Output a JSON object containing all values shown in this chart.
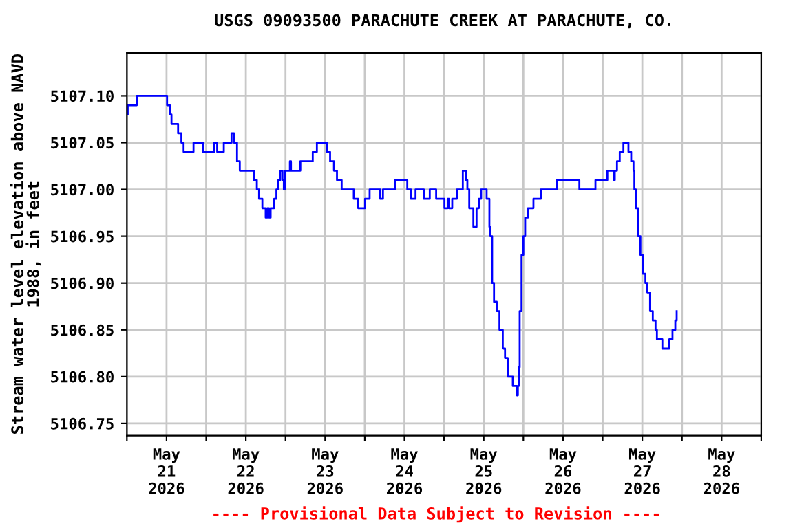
{
  "chart_data": {
    "type": "step",
    "title": "USGS 09093500 PARACHUTE CREEK AT PARACHUTE, CO.",
    "ylabel": "Stream water level elevation above NAVD\n1988, in feet",
    "annotations": [
      "---- Provisional Data Subject to Revision ----"
    ],
    "xlim": [
      "2026-05-21T00:00",
      "2026-05-29T00:00"
    ],
    "xticks": [
      {
        "value": "2026-05-21T00:00",
        "label": null
      },
      {
        "value": "2026-05-21T12:00",
        "label": "May\n21\n2026"
      },
      {
        "value": "2026-05-22T00:00",
        "label": null
      },
      {
        "value": "2026-05-22T12:00",
        "label": "May\n22\n2026"
      },
      {
        "value": "2026-05-23T00:00",
        "label": null
      },
      {
        "value": "2026-05-23T12:00",
        "label": "May\n23\n2026"
      },
      {
        "value": "2026-05-24T00:00",
        "label": null
      },
      {
        "value": "2026-05-24T12:00",
        "label": "May\n24\n2026"
      },
      {
        "value": "2026-05-25T00:00",
        "label": null
      },
      {
        "value": "2026-05-25T12:00",
        "label": "May\n25\n2026"
      },
      {
        "value": "2026-05-26T00:00",
        "label": null
      },
      {
        "value": "2026-05-26T12:00",
        "label": "May\n26\n2026"
      },
      {
        "value": "2026-05-27T00:00",
        "label": null
      },
      {
        "value": "2026-05-27T12:00",
        "label": "May\n27\n2026"
      },
      {
        "value": "2026-05-28T00:00",
        "label": null
      },
      {
        "value": "2026-05-28T12:00",
        "label": "May\n28\n2026"
      },
      {
        "value": "2026-05-29T00:00",
        "label": null
      }
    ],
    "ylim": [
      5106.737,
      5107.146
    ],
    "yticks": [
      {
        "value": 5106.75,
        "label": "5106.75"
      },
      {
        "value": 5106.8,
        "label": "5106.80"
      },
      {
        "value": 5106.85,
        "label": "5106.85"
      },
      {
        "value": 5106.9,
        "label": "5106.90"
      },
      {
        "value": 5106.95,
        "label": "5106.95"
      },
      {
        "value": 5107.0,
        "label": "5107.00"
      },
      {
        "value": 5107.05,
        "label": "5107.05"
      },
      {
        "value": 5107.1,
        "label": "5107.10"
      }
    ],
    "grid": true,
    "series": [
      {
        "color": "#0000ff",
        "x": [
          "2026-05-21T00:00",
          "2026-05-21T00:15",
          "2026-05-21T03:00",
          "2026-05-21T12:10",
          "2026-05-21T13:00",
          "2026-05-21T13:30",
          "2026-05-21T15:30",
          "2026-05-21T16:30",
          "2026-05-21T17:10",
          "2026-05-21T20:10",
          "2026-05-21T23:00",
          "2026-05-22T02:25",
          "2026-05-22T03:20",
          "2026-05-22T05:20",
          "2026-05-22T07:40",
          "2026-05-22T08:25",
          "2026-05-22T09:20",
          "2026-05-22T10:10",
          "2026-05-22T14:30",
          "2026-05-22T15:20",
          "2026-05-22T16:00",
          "2026-05-22T17:00",
          "2026-05-22T18:00",
          "2026-05-22T18:30",
          "2026-05-22T19:00",
          "2026-05-22T19:30",
          "2026-05-22T20:35",
          "2026-05-22T21:15",
          "2026-05-22T21:50",
          "2026-05-22T22:25",
          "2026-05-22T23:05",
          "2026-05-22T23:30",
          "2026-05-22T23:55",
          "2026-05-23T01:20",
          "2026-05-23T01:40",
          "2026-05-23T04:30",
          "2026-05-23T08:15",
          "2026-05-23T09:30",
          "2026-05-23T12:30",
          "2026-05-23T13:30",
          "2026-05-23T14:40",
          "2026-05-23T15:35",
          "2026-05-23T17:00",
          "2026-05-23T20:40",
          "2026-05-23T22:00",
          "2026-05-24T00:05",
          "2026-05-24T01:28",
          "2026-05-24T04:40",
          "2026-05-24T05:30",
          "2026-05-24T09:07",
          "2026-05-24T12:52",
          "2026-05-24T13:58",
          "2026-05-24T15:22",
          "2026-05-24T17:52",
          "2026-05-24T19:40",
          "2026-05-24T21:36",
          "2026-05-25T00:07",
          "2026-05-25T01:05",
          "2026-05-25T01:30",
          "2026-05-25T02:28",
          "2026-05-25T03:52",
          "2026-05-25T05:40",
          "2026-05-25T06:38",
          "2026-05-25T07:03",
          "2026-05-25T07:37",
          "2026-05-25T08:52",
          "2026-05-25T09:50",
          "2026-05-25T10:32",
          "2026-05-25T11:13",
          "2026-05-25T12:53",
          "2026-05-25T13:43",
          "2026-05-25T14:00",
          "2026-05-25T14:33",
          "2026-05-25T15:07",
          "2026-05-25T15:56",
          "2026-05-25T16:46",
          "2026-05-25T17:46",
          "2026-05-25T18:27",
          "2026-05-25T19:16",
          "2026-05-25T20:06",
          "2026-05-25T20:48",
          "2026-05-25T22:03",
          "2026-05-25T22:20",
          "2026-05-25T22:37",
          "2026-05-25T22:53",
          "2026-05-25T23:27",
          "2026-05-26T00:00",
          "2026-05-26T00:33",
          "2026-05-26T01:23",
          "2026-05-26T03:03",
          "2026-05-26T05:17",
          "2026-05-26T10:08",
          "2026-05-26T16:57",
          "2026-05-26T21:49",
          "2026-05-27T01:25",
          "2026-05-27T03:22",
          "2026-05-27T03:40",
          "2026-05-27T04:20",
          "2026-05-27T05:10",
          "2026-05-27T06:17",
          "2026-05-27T07:48",
          "2026-05-27T08:38",
          "2026-05-27T09:20",
          "2026-05-27T09:36",
          "2026-05-27T10:02",
          "2026-05-27T10:44",
          "2026-05-27T11:25",
          "2026-05-27T12:07",
          "2026-05-27T12:56",
          "2026-05-27T13:30",
          "2026-05-27T14:20",
          "2026-05-27T15:10",
          "2026-05-27T16:00",
          "2026-05-27T16:25",
          "2026-05-27T18:04",
          "2026-05-27T20:10",
          "2026-05-27T21:08",
          "2026-05-27T21:59",
          "2026-05-27T22:24"
        ],
        "values": [
          5107.08,
          5107.09,
          5107.1,
          5107.09,
          5107.08,
          5107.07,
          5107.06,
          5107.05,
          5107.04,
          5107.05,
          5107.04,
          5107.05,
          5107.04,
          5107.05,
          5107.06,
          5107.05,
          5107.03,
          5107.02,
          5107.01,
          5107.0,
          5106.99,
          5106.98,
          5106.97,
          5106.98,
          5106.97,
          5106.98,
          5106.99,
          5107.0,
          5107.01,
          5107.02,
          5107.01,
          5107.0,
          5107.02,
          5107.03,
          5107.02,
          5107.03,
          5107.04,
          5107.05,
          5107.04,
          5107.03,
          5107.02,
          5107.01,
          5107.0,
          5106.99,
          5106.98,
          5106.99,
          5107.0,
          5106.99,
          5107.0,
          5107.01,
          5107.0,
          5106.99,
          5107.0,
          5106.99,
          5107.0,
          5106.99,
          5106.98,
          5106.99,
          5106.98,
          5106.99,
          5107.0,
          5107.02,
          5107.01,
          5107.0,
          5106.98,
          5106.96,
          5106.98,
          5106.99,
          5107.0,
          5106.99,
          5106.96,
          5106.95,
          5106.9,
          5106.88,
          5106.87,
          5106.85,
          5106.83,
          5106.82,
          5106.8,
          5106.8,
          5106.79,
          5106.78,
          5106.79,
          5106.81,
          5106.87,
          5106.93,
          5106.95,
          5106.97,
          5106.98,
          5106.99,
          5107.0,
          5107.01,
          5107.0,
          5107.01,
          5107.02,
          5107.01,
          5107.02,
          5107.03,
          5107.04,
          5107.05,
          5107.04,
          5107.03,
          5107.02,
          5107.0,
          5106.98,
          5106.95,
          5106.93,
          5106.91,
          5106.9,
          5106.89,
          5106.87,
          5106.86,
          5106.85,
          5106.84,
          5106.83,
          5106.84,
          5106.85,
          5106.86,
          5106.87
        ]
      }
    ]
  }
}
